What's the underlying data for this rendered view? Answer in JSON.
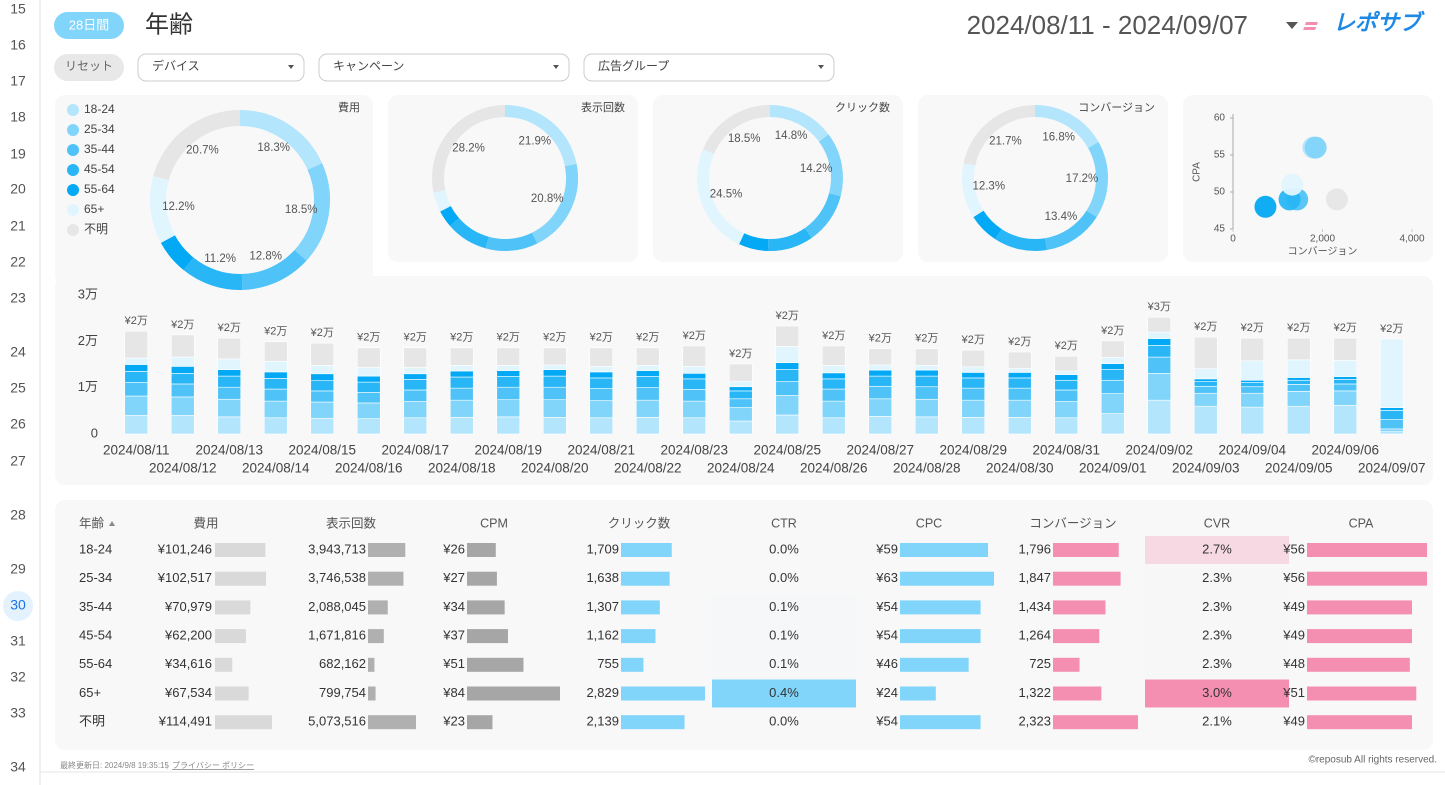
{
  "row_numbers": [
    15,
    16,
    17,
    18,
    19,
    20,
    21,
    22,
    23,
    24,
    25,
    26,
    27,
    28,
    29,
    30,
    31,
    32,
    33,
    34
  ],
  "header": {
    "badge": "28日間",
    "title": "年齢",
    "date_range": "2024/08/11 - 2024/09/07",
    "logo": "レポサブ"
  },
  "filters": {
    "reset": "リセット",
    "dropdowns": [
      "デバイス",
      "キャンペーン",
      "広告グループ"
    ]
  },
  "chart_data": [
    {
      "type": "donut",
      "title": "費用",
      "categories": [
        "18-24",
        "25-34",
        "35-44",
        "45-54",
        "55-64",
        "65+",
        "不明"
      ],
      "colors": [
        "#b3e5fc",
        "#81d4fa",
        "#4fc3f7",
        "#29b6f6",
        "#03a9f4",
        "#e1f5fe",
        "#e6e6e6"
      ],
      "values": [
        18.3,
        18.5,
        12.8,
        11.2,
        6.3,
        12.2,
        20.7
      ],
      "value_labels": [
        "18.3%",
        "18.5%",
        "12.8%",
        "11.2%",
        null,
        "12.2%",
        "20.7%"
      ]
    },
    {
      "type": "donut",
      "title": "表示回数",
      "values": [
        21.9,
        20.8,
        11.6,
        9.3,
        3.8,
        4.4,
        28.2
      ],
      "value_labels": [
        "21.9%",
        "20.8%",
        null,
        null,
        null,
        null,
        "28.2%"
      ]
    },
    {
      "type": "donut",
      "title": "クリック数",
      "values": [
        14.8,
        14.2,
        11.3,
        10.1,
        6.5,
        24.5,
        18.5
      ],
      "value_labels": [
        "14.8%",
        "14.2%",
        null,
        null,
        null,
        "24.5%",
        "18.5%"
      ]
    },
    {
      "type": "donut",
      "title": "コンバージョン",
      "values": [
        16.8,
        17.2,
        13.4,
        11.8,
        6.8,
        12.3,
        21.7
      ],
      "value_labels": [
        "16.8%",
        "17.2%",
        "13.4%",
        null,
        null,
        "12.3%",
        "21.7%"
      ]
    },
    {
      "type": "scatter",
      "x_label": "コンバージョン",
      "y_label": "CPA",
      "x": [
        1796,
        1847,
        1434,
        1264,
        725,
        1322,
        2323
      ],
      "values": [
        56,
        56,
        49,
        49,
        48,
        51,
        49
      ],
      "xlim": [
        0,
        4000
      ],
      "xticks": [
        0,
        {
          "value": 2000,
          "label": "2,000"
        },
        {
          "value": 4000,
          "label": "4,000"
        }
      ],
      "ylim": [
        45,
        60
      ],
      "yticks": [
        45,
        50,
        55,
        60
      ]
    },
    {
      "type": "stacked_bar",
      "categories": [
        "2024/08/11",
        "2024/08/12",
        "2024/08/13",
        "2024/08/14",
        "2024/08/15",
        "2024/08/16",
        "2024/08/17",
        "2024/08/18",
        "2024/08/19",
        "2024/08/20",
        "2024/08/21",
        "2024/08/22",
        "2024/08/23",
        "2024/08/24",
        "2024/08/25",
        "2024/08/26",
        "2024/08/27",
        "2024/08/28",
        "2024/08/29",
        "2024/08/30",
        "2024/08/31",
        "2024/09/01",
        "2024/09/02",
        "2024/09/03",
        "2024/09/04",
        "2024/09/05",
        "2024/09/06",
        "2024/09/07"
      ],
      "series": [
        {
          "values": [
            4000,
            4000,
            3700,
            3500,
            3400,
            3300,
            3500,
            3600,
            3700,
            3600,
            3500,
            3600,
            3500,
            2800,
            4100,
            3500,
            3800,
            3700,
            3600,
            3600,
            3500,
            4400,
            7300,
            6000,
            5800,
            6000,
            6200,
            500
          ]
        },
        {
          "values": [
            4200,
            4000,
            3800,
            3600,
            3500,
            3400,
            3500,
            3700,
            3700,
            3800,
            3700,
            3700,
            3600,
            2900,
            4200,
            3600,
            3800,
            3800,
            3700,
            3700,
            3500,
            4300,
            5800,
            2800,
            3000,
            3200,
            3100,
            600
          ]
        },
        {
          "values": [
            2900,
            2800,
            2600,
            2600,
            2400,
            2300,
            2500,
            2600,
            2700,
            2700,
            2600,
            2700,
            2500,
            1900,
            3000,
            2600,
            2700,
            2700,
            2600,
            2600,
            2500,
            2900,
            3500,
            1500,
            1400,
            1500,
            1500,
            2000
          ]
        },
        {
          "values": [
            2400,
            2300,
            2400,
            2300,
            2200,
            2200,
            2300,
            2400,
            2300,
            2400,
            2300,
            2400,
            2300,
            1700,
            2600,
            2200,
            2200,
            2300,
            2200,
            2200,
            2100,
            2300,
            2500,
            1000,
            900,
            900,
            1000,
            2000
          ]
        },
        {
          "values": [
            1500,
            1500,
            1400,
            1400,
            1500,
            1300,
            1200,
            1300,
            1300,
            1400,
            1300,
            1300,
            1200,
            900,
            1500,
            1300,
            1300,
            1300,
            1200,
            1200,
            1200,
            1300,
            1500,
            600,
            500,
            600,
            600,
            600
          ]
        },
        {
          "values": [
            1400,
            2000,
            2300,
            2300,
            1800,
            1900,
            1400,
            1200,
            1100,
            1000,
            1200,
            1100,
            1500,
            1200,
            3500,
            1600,
            1100,
            1000,
            1200,
            900,
            800,
            1300,
            1400,
            2200,
            4200,
            3800,
            3500,
            14800
          ]
        },
        {
          "values": [
            5800,
            4800,
            4500,
            4200,
            4800,
            4200,
            4200,
            3800,
            3800,
            3700,
            4000,
            3800,
            4400,
            3700,
            4400,
            4200,
            3500,
            3600,
            3600,
            3500,
            3200,
            3600,
            3200,
            6800,
            4900,
            4700,
            4800,
            0
          ]
        }
      ],
      "totals": {
        "values": [
          22200,
          21400,
          20700,
          19900,
          19600,
          18600,
          18600,
          18600,
          18600,
          18600,
          18600,
          18600,
          19000,
          15100,
          23300,
          19000,
          18400,
          18400,
          18100,
          17700,
          16800,
          20100,
          25200,
          20900,
          20700,
          20700,
          20700,
          20500
        ],
        "value_labels": [
          "¥2万",
          "¥2万",
          "¥2万",
          "¥2万",
          "¥2万",
          "¥2万",
          "¥2万",
          "¥2万",
          "¥2万",
          "¥2万",
          "¥2万",
          "¥2万",
          "¥2万",
          "¥2万",
          "¥2万",
          "¥2万",
          "¥2万",
          "¥2万",
          "¥2万",
          "¥2万",
          "¥2万",
          "¥2万",
          "¥3万",
          "¥2万",
          "¥2万",
          "¥2万",
          "¥2万",
          "¥2万"
        ]
      },
      "ylim": [
        0,
        30000
      ],
      "yticks": [
        0,
        {
          "value": 10000,
          "label": "1万"
        },
        {
          "value": 20000,
          "label": "2万"
        },
        {
          "value": 30000,
          "label": "3万"
        }
      ]
    }
  ],
  "table": {
    "columns": [
      {
        "header": "年齢"
      },
      {
        "header": "費用",
        "bar": "#d9d9d9"
      },
      {
        "header": "表示回数",
        "bar": "#b0b0b0"
      },
      {
        "header": "CPM",
        "bar": "#a6a6a6"
      },
      {
        "header": "クリック数",
        "bar": "#81d4fa"
      },
      {
        "header": "CTR",
        "heat": "#81d4fa"
      },
      {
        "header": "CPC",
        "bar": "#81d4fa"
      },
      {
        "header": "コンバージョン",
        "bar": "#f48fb1"
      },
      {
        "header": "CVR",
        "heat": "#f48fb1"
      },
      {
        "header": "CPA",
        "bar": "#f48fb1"
      }
    ],
    "rows": [
      [
        "18-24",
        {
          "value": 101246,
          "label": "¥101,246"
        },
        {
          "value": 3943713,
          "label": "3,943,713"
        },
        {
          "value": 26,
          "label": "¥26"
        },
        {
          "value": 1709,
          "label": "1,709"
        },
        {
          "value": 0.0,
          "label": "0.0%"
        },
        {
          "value": 59,
          "label": "¥59"
        },
        {
          "value": 1796,
          "label": "1,796"
        },
        {
          "value": 2.7,
          "label": "2.7%"
        },
        {
          "value": 56,
          "label": "¥56"
        }
      ],
      [
        "25-34",
        {
          "value": 102517,
          "label": "¥102,517"
        },
        {
          "value": 3746538,
          "label": "3,746,538"
        },
        {
          "value": 27,
          "label": "¥27"
        },
        {
          "value": 1638,
          "label": "1,638"
        },
        {
          "value": 0.0,
          "label": "0.0%"
        },
        {
          "value": 63,
          "label": "¥63"
        },
        {
          "value": 1847,
          "label": "1,847"
        },
        {
          "value": 2.3,
          "label": "2.3%"
        },
        {
          "value": 56,
          "label": "¥56"
        }
      ],
      [
        "35-44",
        {
          "value": 70979,
          "label": "¥70,979"
        },
        {
          "value": 2088045,
          "label": "2,088,045"
        },
        {
          "value": 34,
          "label": "¥34"
        },
        {
          "value": 1307,
          "label": "1,307"
        },
        {
          "value": 0.1,
          "label": "0.1%"
        },
        {
          "value": 54,
          "label": "¥54"
        },
        {
          "value": 1434,
          "label": "1,434"
        },
        {
          "value": 2.3,
          "label": "2.3%"
        },
        {
          "value": 49,
          "label": "¥49"
        }
      ],
      [
        "45-54",
        {
          "value": 62200,
          "label": "¥62,200"
        },
        {
          "value": 1671816,
          "label": "1,671,816"
        },
        {
          "value": 37,
          "label": "¥37"
        },
        {
          "value": 1162,
          "label": "1,162"
        },
        {
          "value": 0.1,
          "label": "0.1%"
        },
        {
          "value": 54,
          "label": "¥54"
        },
        {
          "value": 1264,
          "label": "1,264"
        },
        {
          "value": 2.3,
          "label": "2.3%"
        },
        {
          "value": 49,
          "label": "¥49"
        }
      ],
      [
        "55-64",
        {
          "value": 34616,
          "label": "¥34,616"
        },
        {
          "value": 682162,
          "label": "682,162"
        },
        {
          "value": 51,
          "label": "¥51"
        },
        {
          "value": 755,
          "label": "755"
        },
        {
          "value": 0.1,
          "label": "0.1%"
        },
        {
          "value": 46,
          "label": "¥46"
        },
        {
          "value": 725,
          "label": "725"
        },
        {
          "value": 2.3,
          "label": "2.3%"
        },
        {
          "value": 48,
          "label": "¥48"
        }
      ],
      [
        "65+",
        {
          "value": 67534,
          "label": "¥67,534"
        },
        {
          "value": 799754,
          "label": "799,754"
        },
        {
          "value": 84,
          "label": "¥84"
        },
        {
          "value": 2829,
          "label": "2,829"
        },
        {
          "value": 0.4,
          "label": "0.4%"
        },
        {
          "value": 24,
          "label": "¥24"
        },
        {
          "value": 1322,
          "label": "1,322"
        },
        {
          "value": 3.0,
          "label": "3.0%"
        },
        {
          "value": 51,
          "label": "¥51"
        }
      ],
      [
        "不明",
        {
          "value": 114491,
          "label": "¥114,491"
        },
        {
          "value": 5073516,
          "label": "5,073,516"
        },
        {
          "value": 23,
          "label": "¥23"
        },
        {
          "value": 2139,
          "label": "2,139"
        },
        {
          "value": 0.0,
          "label": "0.0%"
        },
        {
          "value": 54,
          "label": "¥54"
        },
        {
          "value": 2323,
          "label": "2,323"
        },
        {
          "value": 2.1,
          "label": "2.1%"
        },
        {
          "value": 49,
          "label": "¥49"
        }
      ]
    ]
  },
  "footer": {
    "updated": "最終更新日: 2024/9/8 19:35:15",
    "privacy": "プライバシー ポリシー",
    "copyright": "©reposub All rights reserved."
  }
}
